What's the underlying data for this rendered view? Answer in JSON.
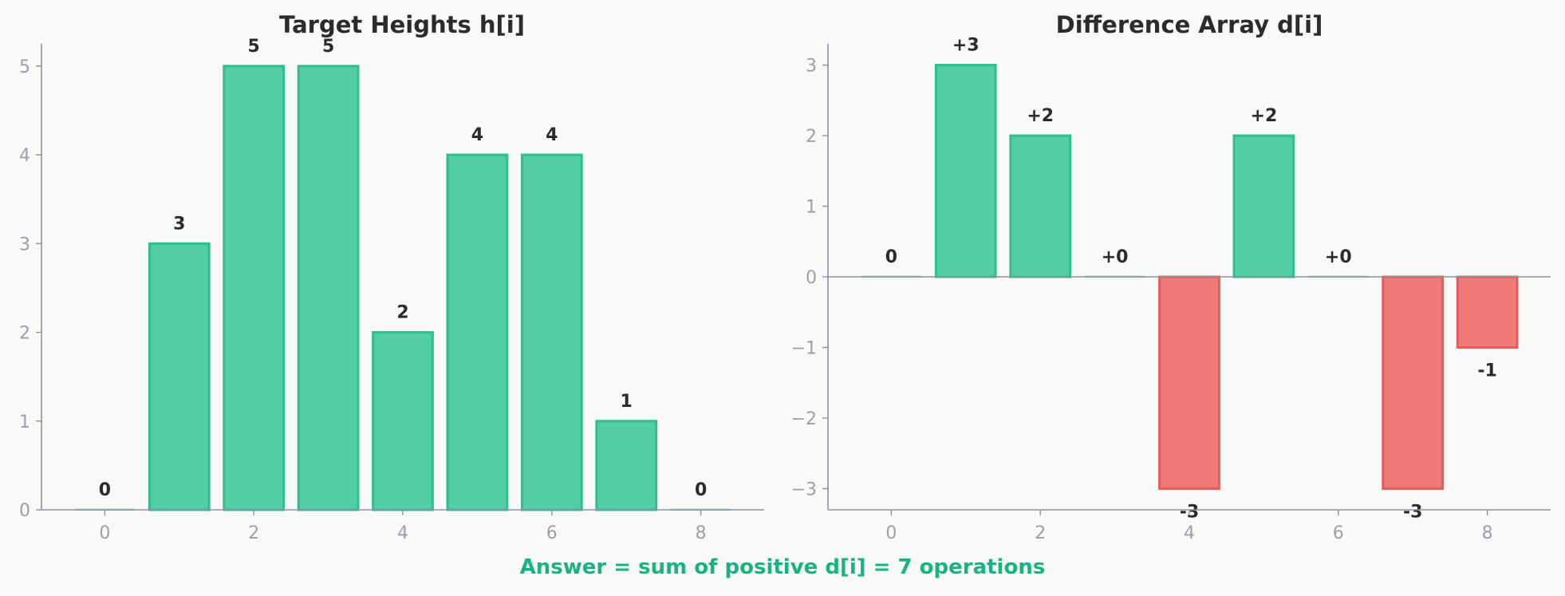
{
  "chart_data": [
    {
      "type": "bar",
      "title": "Target Heights h[i]",
      "xlabel": "",
      "ylabel": "",
      "x": [
        0,
        1,
        2,
        3,
        4,
        5,
        6,
        7,
        8
      ],
      "values": [
        0,
        3,
        5,
        5,
        2,
        4,
        4,
        1,
        0
      ],
      "data_labels": [
        "0",
        "3",
        "5",
        "5",
        "2",
        "4",
        "4",
        "1",
        "0"
      ],
      "xlim": [
        -0.85,
        8.85
      ],
      "ylim": [
        0,
        5.25
      ],
      "xticks": [
        0,
        2,
        4,
        6,
        8
      ],
      "xtick_labels": [
        "0",
        "2",
        "4",
        "6",
        "8"
      ],
      "yticks": [
        0,
        1,
        2,
        3,
        4,
        5
      ],
      "ytick_labels": [
        "0",
        "1",
        "2",
        "3",
        "4",
        "5"
      ],
      "grid": false
    },
    {
      "type": "bar",
      "title": "Difference Array d[i]",
      "xlabel": "",
      "ylabel": "",
      "x": [
        0,
        1,
        2,
        3,
        4,
        5,
        6,
        7,
        8
      ],
      "values": [
        0,
        3,
        2,
        0,
        -3,
        2,
        0,
        -3,
        -1
      ],
      "data_labels": [
        "0",
        "+3",
        "+2",
        "+0",
        "-3",
        "+2",
        "+0",
        "-3",
        "-1"
      ],
      "xlim": [
        -0.85,
        8.85
      ],
      "ylim": [
        -3.3,
        3.3
      ],
      "xticks": [
        0,
        2,
        4,
        6,
        8
      ],
      "xtick_labels": [
        "0",
        "2",
        "4",
        "6",
        "8"
      ],
      "yticks": [
        -3,
        -2,
        -1,
        0,
        1,
        2,
        3
      ],
      "ytick_labels": [
        "−3",
        "−2",
        "−1",
        "0",
        "1",
        "2",
        "3"
      ],
      "grid": false
    }
  ],
  "caption": "Answer = sum of positive d[i] = 7 operations",
  "colors": {
    "positive_fill": "#53cda3",
    "positive_edge": "#2fbf8a",
    "negative_fill": "#f07a78",
    "negative_edge": "#e85a5a",
    "zero_bar": "#9bd9c4",
    "axis": "#8b93a3",
    "tick_text": "#9aa0ad",
    "label_text": "#2b2b2b",
    "caption": "#19b383",
    "background": "#f9f9f7"
  }
}
